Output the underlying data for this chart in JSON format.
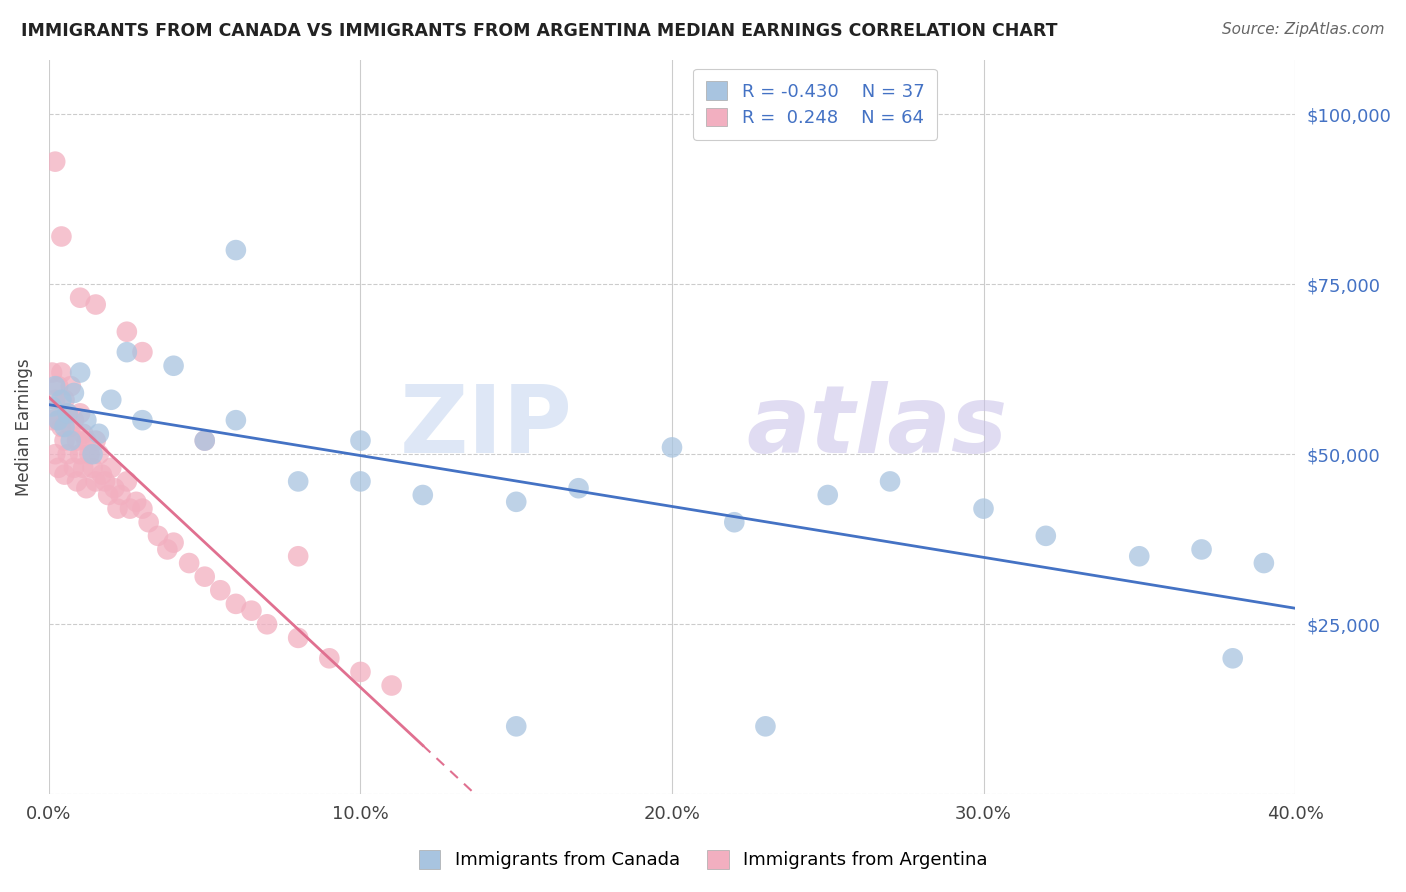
{
  "title": "IMMIGRANTS FROM CANADA VS IMMIGRANTS FROM ARGENTINA MEDIAN EARNINGS CORRELATION CHART",
  "source": "Source: ZipAtlas.com",
  "ylabel": "Median Earnings",
  "canada_color": "#a8c4e0",
  "argentina_color": "#f2afc0",
  "canada_line_color": "#4472c4",
  "argentina_line_color": "#e07090",
  "watermark_zip": "ZIP",
  "watermark_atlas": "atlas",
  "legend_labels": [
    "R = -0.430    N = 37",
    "R =  0.248    N = 64"
  ],
  "bottom_legend": [
    "Immigrants from Canada",
    "Immigrants from Argentina"
  ],
  "xlim": [
    0,
    0.4
  ],
  "ylim": [
    0,
    108000
  ],
  "yticks": [
    0,
    25000,
    50000,
    75000,
    100000
  ],
  "ytick_labels": [
    "",
    "$25,000",
    "$50,000",
    "$75,000",
    "$100,000"
  ],
  "xticks": [
    0,
    0.1,
    0.2,
    0.3,
    0.4
  ],
  "xtick_labels": [
    "0.0%",
    "10.0%",
    "20.0%",
    "30.0%",
    "40.0%"
  ],
  "canada_x": [
    0.001,
    0.002,
    0.003,
    0.004,
    0.005,
    0.006,
    0.007,
    0.008,
    0.01,
    0.012,
    0.014,
    0.016,
    0.02,
    0.025,
    0.03,
    0.04,
    0.05,
    0.06,
    0.08,
    0.1,
    0.12,
    0.15,
    0.17,
    0.2,
    0.22,
    0.25,
    0.27,
    0.3,
    0.32,
    0.35,
    0.37,
    0.39,
    0.06,
    0.1,
    0.15,
    0.23,
    0.38
  ],
  "canada_y": [
    57000,
    60000,
    55000,
    58000,
    54000,
    56000,
    52000,
    59000,
    62000,
    55000,
    50000,
    53000,
    58000,
    65000,
    55000,
    63000,
    52000,
    55000,
    46000,
    46000,
    44000,
    43000,
    45000,
    51000,
    40000,
    44000,
    46000,
    42000,
    38000,
    35000,
    36000,
    34000,
    80000,
    52000,
    10000,
    10000,
    20000
  ],
  "argentina_x": [
    0.001,
    0.001,
    0.002,
    0.002,
    0.003,
    0.003,
    0.003,
    0.004,
    0.004,
    0.005,
    0.005,
    0.005,
    0.006,
    0.006,
    0.007,
    0.007,
    0.008,
    0.008,
    0.009,
    0.009,
    0.01,
    0.01,
    0.011,
    0.011,
    0.012,
    0.012,
    0.013,
    0.014,
    0.015,
    0.015,
    0.016,
    0.017,
    0.018,
    0.019,
    0.02,
    0.021,
    0.022,
    0.023,
    0.025,
    0.026,
    0.028,
    0.03,
    0.032,
    0.035,
    0.038,
    0.04,
    0.045,
    0.05,
    0.055,
    0.06,
    0.065,
    0.07,
    0.08,
    0.09,
    0.1,
    0.11,
    0.002,
    0.004,
    0.01,
    0.015,
    0.025,
    0.03,
    0.05,
    0.08
  ],
  "argentina_y": [
    55000,
    62000,
    58000,
    50000,
    55000,
    60000,
    48000,
    54000,
    62000,
    52000,
    58000,
    47000,
    56000,
    50000,
    54000,
    60000,
    48000,
    55000,
    52000,
    46000,
    50000,
    56000,
    48000,
    53000,
    45000,
    52000,
    50000,
    48000,
    52000,
    46000,
    50000,
    47000,
    46000,
    44000,
    48000,
    45000,
    42000,
    44000,
    46000,
    42000,
    43000,
    42000,
    40000,
    38000,
    36000,
    37000,
    34000,
    32000,
    30000,
    28000,
    27000,
    25000,
    23000,
    20000,
    18000,
    16000,
    93000,
    82000,
    73000,
    72000,
    68000,
    65000,
    52000,
    35000
  ]
}
